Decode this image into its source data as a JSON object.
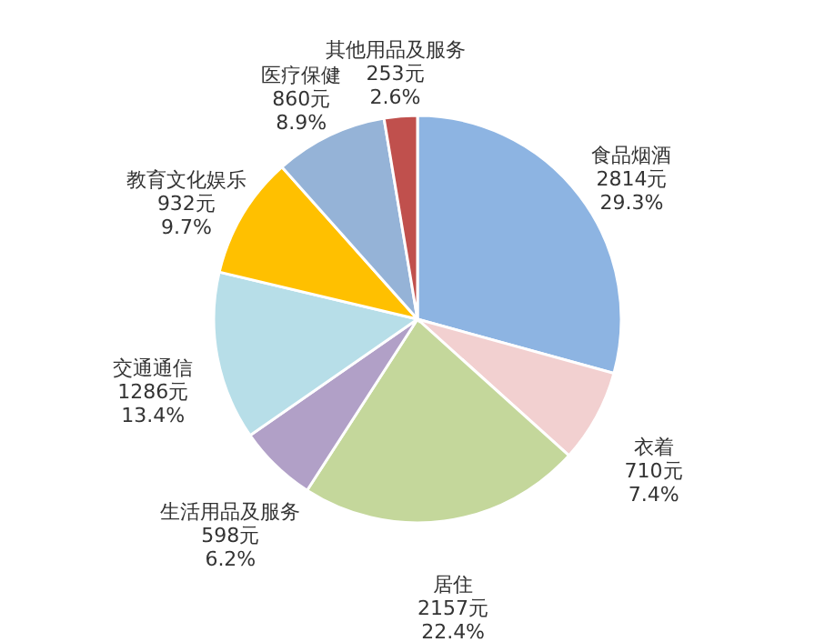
{
  "chart_data": {
    "type": "pie",
    "categories": [
      "食品烟酒",
      "衣着",
      "居住",
      "生活用品及服务",
      "交通通信",
      "教育文化娱乐",
      "医疗保健",
      "其他用品及服务"
    ],
    "values": [
      2814,
      710,
      2157,
      598,
      1286,
      932,
      860,
      253
    ],
    "value_labels": [
      "2814元\n29.3%",
      "710元\n7.4%",
      "2157元\n22.4%",
      "598元\n6.2%",
      "1286元\n13.4%",
      "932元\n9.7%",
      "860元\n8.9%",
      "253元\n2.6%"
    ],
    "colors": [
      "#8db4e2",
      "#f2d0d0",
      "#c4d79b",
      "#b1a0c7",
      "#b7dee8",
      "#ffc000",
      "#95b3d7",
      "#c0504d"
    ],
    "legend": false
  }
}
